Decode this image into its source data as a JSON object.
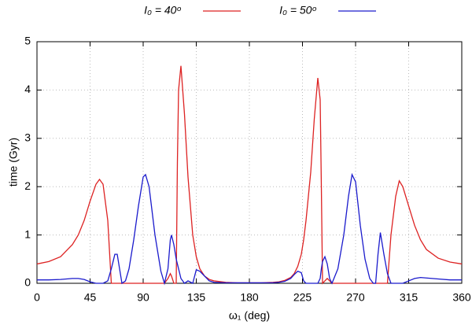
{
  "chart_data": {
    "type": "line",
    "xlabel": "ω₁ (deg)",
    "ylabel": "time (Gyr)",
    "xlim": [
      0,
      360
    ],
    "xticks": [
      0,
      45,
      90,
      135,
      180,
      225,
      270,
      315,
      360
    ],
    "ylim": [
      0,
      5
    ],
    "yticks": [
      0,
      1,
      2,
      3,
      4,
      5
    ],
    "grid": true,
    "legend": "top",
    "x": [
      0,
      10,
      20,
      30,
      35,
      40,
      45,
      50,
      53,
      56,
      60,
      63,
      66,
      68,
      70,
      72,
      75,
      78,
      82,
      86,
      90,
      92,
      95,
      100,
      105,
      108,
      111,
      113,
      114,
      116,
      118,
      119,
      120,
      122,
      125,
      128,
      132,
      135,
      138,
      142,
      146,
      150,
      160,
      170,
      180,
      190,
      200,
      205,
      210,
      215,
      218,
      221,
      224,
      226,
      228,
      232,
      235,
      238,
      240,
      241,
      242,
      244,
      246,
      248,
      250,
      255,
      260,
      264,
      267,
      270,
      274,
      278,
      282,
      285,
      287,
      289,
      291,
      294,
      297,
      300,
      304,
      307,
      310,
      315,
      320,
      325,
      330,
      340,
      350,
      360
    ],
    "series": [
      {
        "name": "I₀ = 40ᵒ",
        "color": "#dd2222",
        "values": [
          0.4,
          0.45,
          0.55,
          0.8,
          1.0,
          1.3,
          1.7,
          2.05,
          2.15,
          2.05,
          1.3,
          0,
          0,
          0,
          0,
          0,
          0,
          0,
          0,
          0,
          0,
          0,
          0,
          0,
          0,
          0,
          0.1,
          0.2,
          0.15,
          0,
          0,
          2.5,
          4.0,
          4.5,
          3.5,
          2.2,
          1.0,
          0.55,
          0.3,
          0.15,
          0.08,
          0.05,
          0.02,
          0.01,
          0.01,
          0.01,
          0.02,
          0.03,
          0.06,
          0.12,
          0.2,
          0.35,
          0.6,
          0.9,
          1.3,
          2.3,
          3.4,
          4.25,
          3.8,
          2.0,
          0,
          0.05,
          0.1,
          0.05,
          0,
          0,
          0,
          0,
          0,
          0,
          0,
          0,
          0,
          0,
          0,
          0,
          0,
          0,
          0,
          1.0,
          1.8,
          2.12,
          2.0,
          1.6,
          1.2,
          0.9,
          0.7,
          0.52,
          0.44,
          0.4
        ]
      },
      {
        "name": "I₀ = 50ᵒ",
        "color": "#1a1acc",
        "values": [
          0.07,
          0.07,
          0.08,
          0.1,
          0.1,
          0.08,
          0.03,
          0,
          0,
          0,
          0.05,
          0.3,
          0.6,
          0.6,
          0.3,
          0,
          0.05,
          0.3,
          0.9,
          1.6,
          2.2,
          2.25,
          2.0,
          1.0,
          0.25,
          0,
          0.3,
          0.9,
          1.0,
          0.8,
          0.5,
          0.4,
          0.3,
          0.1,
          0,
          0.05,
          0,
          0.28,
          0.25,
          0.15,
          0.05,
          0.02,
          0.01,
          0.01,
          0.01,
          0.01,
          0.01,
          0.02,
          0.04,
          0.1,
          0.18,
          0.25,
          0.22,
          0.05,
          0,
          0,
          0,
          0,
          0.1,
          0.3,
          0.45,
          0.55,
          0.4,
          0.1,
          0,
          0.3,
          1.0,
          1.8,
          2.25,
          2.1,
          1.2,
          0.5,
          0.1,
          0,
          0,
          0.6,
          1.05,
          0.6,
          0.2,
          0,
          0,
          0,
          0,
          0.05,
          0.1,
          0.12,
          0.11,
          0.09,
          0.07,
          0.07
        ]
      }
    ]
  }
}
